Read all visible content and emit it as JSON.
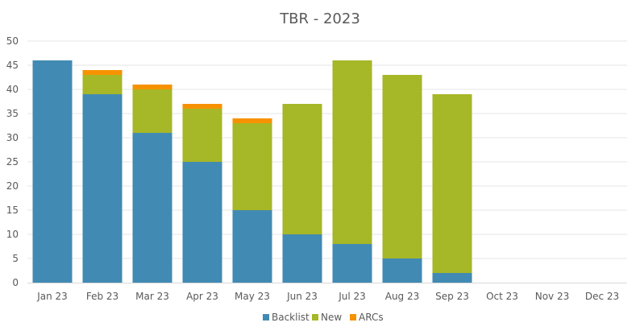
{
  "chart_data": {
    "type": "bar",
    "stacked": true,
    "title": "TBR - 2023",
    "xlabel": "",
    "ylabel": "",
    "categories": [
      "Jan 23",
      "Feb 23",
      "Mar 23",
      "Apr 23",
      "May 23",
      "Jun 23",
      "Jul 23",
      "Aug 23",
      "Sep 23",
      "Oct 23",
      "Nov 23",
      "Dec 23"
    ],
    "series": [
      {
        "name": "Backlist",
        "color": "#418ab3",
        "values": [
          46,
          39,
          31,
          25,
          15,
          10,
          8,
          5,
          2,
          0,
          0,
          0
        ]
      },
      {
        "name": "New",
        "color": "#a6b727",
        "values": [
          0,
          4,
          9,
          11,
          18,
          27,
          38,
          38,
          37,
          0,
          0,
          0
        ]
      },
      {
        "name": "ARCs",
        "color": "#f69200",
        "values": [
          0,
          1,
          1,
          1,
          1,
          0,
          0,
          0,
          0,
          0,
          0,
          0
        ]
      }
    ],
    "ylim": [
      0,
      50
    ],
    "yticks": [
      0,
      5,
      10,
      15,
      20,
      25,
      30,
      35,
      40,
      45,
      50
    ],
    "grid": true,
    "legend_position": "bottom"
  }
}
